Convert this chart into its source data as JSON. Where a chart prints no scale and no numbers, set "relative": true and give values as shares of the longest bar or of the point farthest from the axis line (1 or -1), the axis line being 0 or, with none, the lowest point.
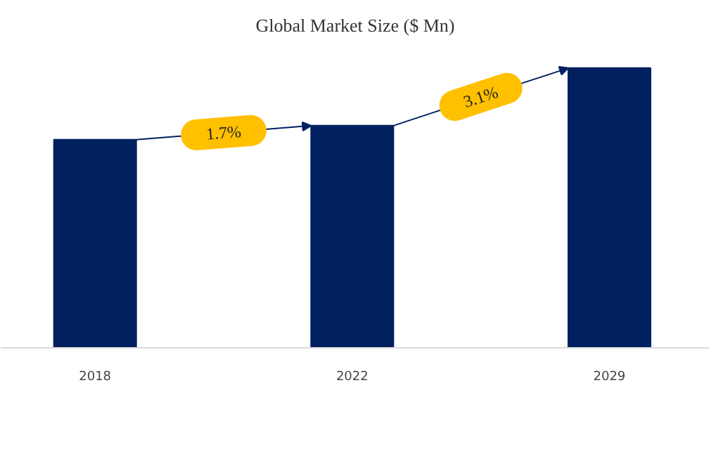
{
  "chart_data": {
    "type": "bar",
    "title": "Global Market Size ($ Mn)",
    "categories": [
      "2018",
      "2022",
      "2029"
    ],
    "values": [
      0.744,
      0.794,
      1
    ],
    "color": "#002060",
    "relative": true,
    "grid": false,
    "annotations": [
      "1.7%",
      "3.1%"
    ]
  }
}
